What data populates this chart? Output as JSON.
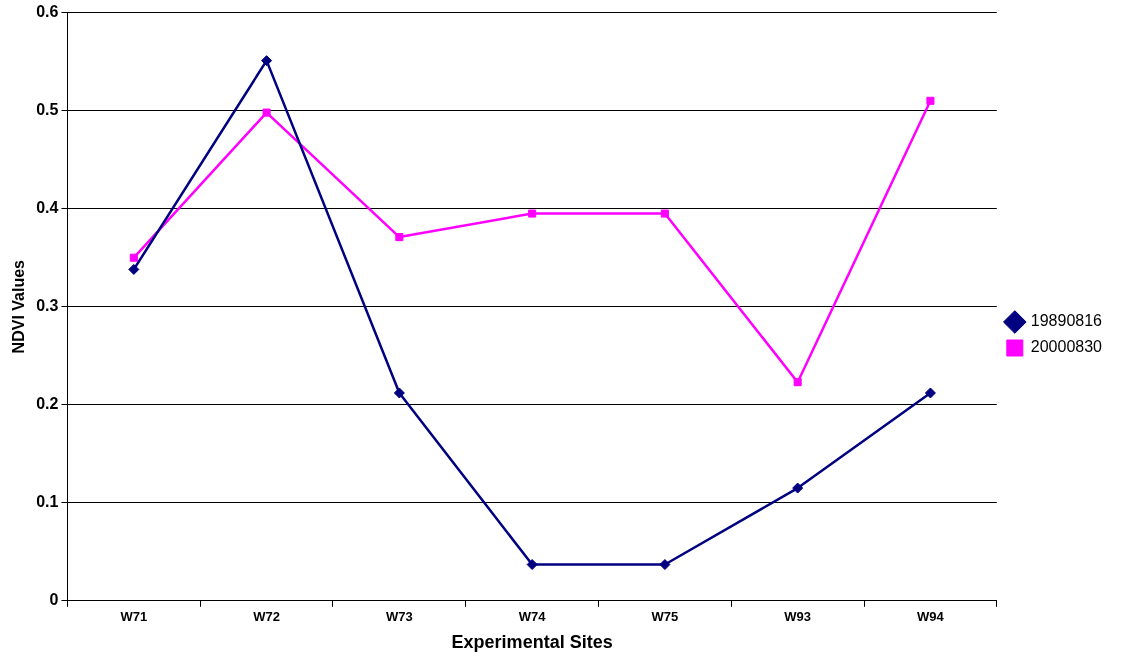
{
  "chart_data": {
    "type": "line",
    "xlabel": "Experimental Sites",
    "ylabel": "NDVI Values",
    "categories": [
      "W71",
      "W72",
      "W73",
      "W74",
      "W75",
      "W93",
      "W94"
    ],
    "series": [
      {
        "name": "19890816",
        "color": "#000080",
        "marker": "diamond",
        "values": [
          0.338,
          0.551,
          0.212,
          0.037,
          0.037,
          0.115,
          0.212
        ]
      },
      {
        "name": "20000830",
        "color": "#ff00ff",
        "marker": "square",
        "values": [
          0.35,
          0.498,
          0.371,
          0.395,
          0.395,
          0.223,
          0.51
        ]
      }
    ],
    "ylim": [
      0,
      0.6
    ],
    "yticks": [
      0,
      0.1,
      0.2,
      0.3,
      0.4,
      0.5,
      0.6
    ],
    "grid": "y",
    "legend": "right",
    "line_style": "solid"
  }
}
